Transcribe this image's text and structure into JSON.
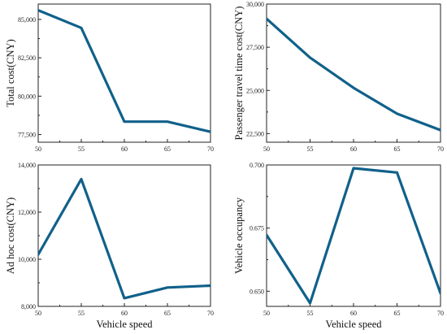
{
  "theme": {
    "line_color": "#10618a",
    "axis_color": "#222222"
  },
  "chart_data": [
    {
      "type": "line",
      "x": [
        50,
        55,
        60,
        65,
        70
      ],
      "values": [
        85600,
        84450,
        78340,
        78340,
        77680
      ],
      "xlabel": "",
      "ylabel": "Total cost(CNY)",
      "xlim": [
        50,
        70
      ],
      "ylim": [
        77000,
        86000
      ],
      "xticks": [
        50,
        55,
        60,
        65,
        70
      ],
      "xtick_labels": [
        "50",
        "55",
        "60",
        "65",
        "70"
      ],
      "yticks": [
        77500,
        80000,
        82500,
        85000
      ],
      "ytick_labels": [
        "77,500",
        "80,000",
        "82,500",
        "85,000"
      ],
      "grid": false
    },
    {
      "type": "line",
      "x": [
        50,
        55,
        60,
        65,
        70
      ],
      "values": [
        29150,
        26900,
        25150,
        23650,
        22700
      ],
      "xlabel": "",
      "ylabel": "Passenger travel time cost(CNY)",
      "xlim": [
        50,
        70
      ],
      "ylim": [
        22000,
        30000
      ],
      "xticks": [
        50,
        55,
        60,
        65,
        70
      ],
      "xtick_labels": [
        "50",
        "55",
        "60",
        "65",
        "70"
      ],
      "yticks": [
        22500,
        25000,
        27500,
        30000
      ],
      "ytick_labels": [
        "22,500",
        "25,000",
        "27,500",
        "30,000"
      ],
      "grid": false
    },
    {
      "type": "line",
      "x": [
        50,
        55,
        60,
        65,
        70
      ],
      "values": [
        10200,
        13400,
        8350,
        8800,
        8880
      ],
      "xlabel": "Vehicle speed",
      "ylabel": "Ad hoc cost(CNY)",
      "xlim": [
        50,
        70
      ],
      "ylim": [
        8000,
        14000
      ],
      "xticks": [
        50,
        55,
        60,
        65,
        70
      ],
      "xtick_labels": [
        "50",
        "55",
        "60",
        "65",
        "70"
      ],
      "yticks": [
        8000,
        10000,
        12000,
        14000
      ],
      "ytick_labels": [
        "8,000",
        "10,000",
        "12,000",
        "14,000"
      ],
      "grid": false
    },
    {
      "type": "line",
      "x": [
        50,
        55,
        60,
        65,
        70
      ],
      "values": [
        0.6723,
        0.6453,
        0.6987,
        0.697,
        0.6492
      ],
      "xlabel": "Vehicle speed",
      "ylabel": "Vehicle occupancy",
      "xlim": [
        50,
        70
      ],
      "ylim": [
        0.644,
        0.7
      ],
      "xticks": [
        50,
        55,
        60,
        65,
        70
      ],
      "xtick_labels": [
        "50",
        "55",
        "60",
        "65",
        "70"
      ],
      "yticks": [
        0.65,
        0.675,
        0.7
      ],
      "ytick_labels": [
        "0.650",
        "0.675",
        "0.700"
      ],
      "grid": false
    }
  ]
}
